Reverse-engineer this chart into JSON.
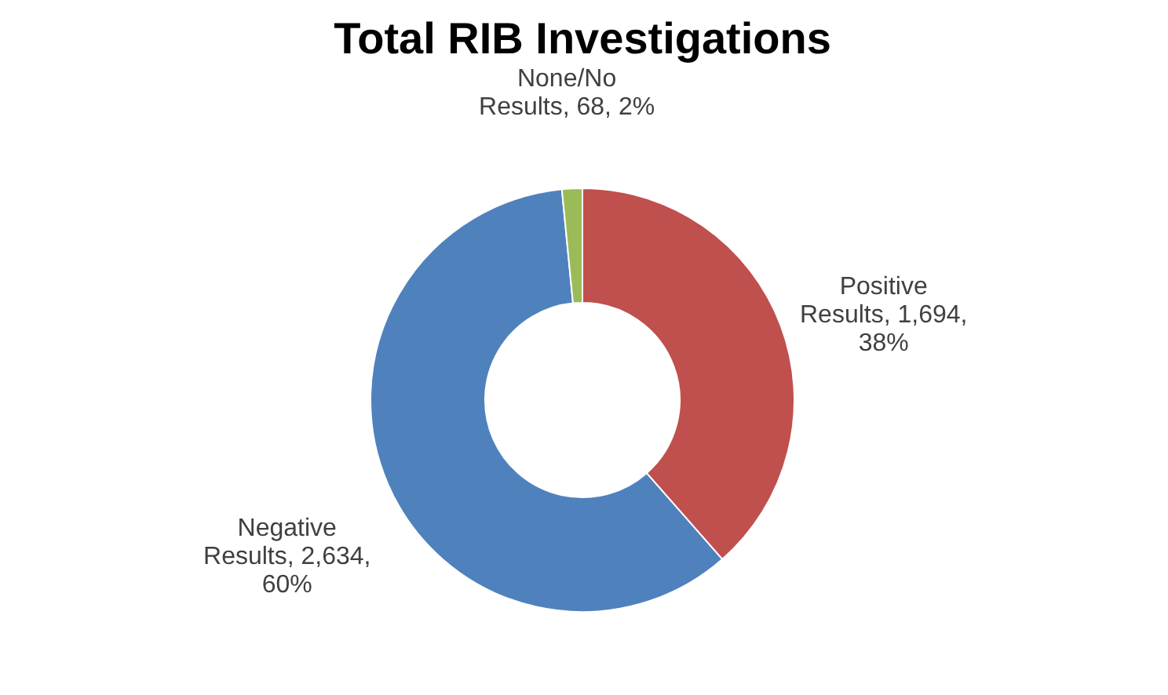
{
  "chart_data": {
    "type": "donut",
    "title": "Total RIB Investigations",
    "categories": [
      "Positive Results",
      "Negative Results",
      "None/No Results"
    ],
    "values": [
      1694,
      2634,
      68
    ],
    "value_labels": [
      "1,694, 38%",
      "2,634, 60%",
      "68, 2%"
    ],
    "colors": [
      "#c0504d",
      "#4f81bd",
      "#9bbb59"
    ],
    "legend": false
  }
}
